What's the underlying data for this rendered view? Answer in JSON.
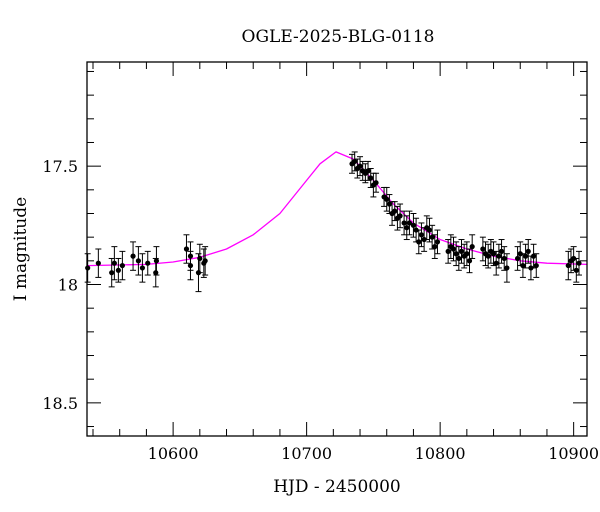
{
  "chart_data": {
    "type": "scatter",
    "title": "OGLE-2025-BLG-0118",
    "xlabel": "HJD - 2450000",
    "ylabel": "I magnitude",
    "xlim": [
      10535.5,
      10910
    ],
    "ylim": [
      18.64,
      17.06
    ],
    "y_inverted": true,
    "grid": false,
    "x_ticks": [
      10600,
      10700,
      10800,
      10900
    ],
    "x_tick_labels": [
      "10600",
      "10700",
      "10800",
      "10900"
    ],
    "y_ticks": [
      17.5,
      18,
      18.5
    ],
    "y_tick_labels": [
      "17.5",
      "18",
      "18.5"
    ],
    "colors": {
      "points": "#000000",
      "errorbars": "#000000",
      "model": "#ff00ff"
    },
    "points": [
      [
        10536,
        17.93,
        0.06
      ],
      [
        10544,
        17.91,
        0.06
      ],
      [
        10554,
        17.95,
        0.06
      ],
      [
        10556,
        17.91,
        0.07
      ],
      [
        10559,
        17.94,
        0.05
      ],
      [
        10562,
        17.92,
        0.06
      ],
      [
        10570,
        17.88,
        0.06
      ],
      [
        10574,
        17.9,
        0.06
      ],
      [
        10577,
        17.93,
        0.06
      ],
      [
        10581,
        17.91,
        0.05
      ],
      [
        10587,
        17.95,
        0.06
      ],
      [
        10587.5,
        17.9,
        0.06
      ],
      [
        10610,
        17.85,
        0.06
      ],
      [
        10613,
        17.88,
        0.06
      ],
      [
        10613,
        17.92,
        0.06
      ],
      [
        10619,
        17.95,
        0.08
      ],
      [
        10620,
        17.89,
        0.06
      ],
      [
        10623,
        17.91,
        0.06
      ],
      [
        10624,
        17.9,
        0.06
      ],
      [
        10734,
        17.49,
        0.04
      ],
      [
        10736,
        17.48,
        0.04
      ],
      [
        10738,
        17.51,
        0.04
      ],
      [
        10740,
        17.5,
        0.04
      ],
      [
        10742,
        17.52,
        0.04
      ],
      [
        10744,
        17.53,
        0.04
      ],
      [
        10746,
        17.52,
        0.04
      ],
      [
        10748,
        17.55,
        0.04
      ],
      [
        10750,
        17.58,
        0.05
      ],
      [
        10752,
        17.57,
        0.04
      ],
      [
        10758,
        17.63,
        0.04
      ],
      [
        10760,
        17.64,
        0.05
      ],
      [
        10762,
        17.66,
        0.04
      ],
      [
        10764,
        17.7,
        0.05
      ],
      [
        10766,
        17.69,
        0.04
      ],
      [
        10768,
        17.72,
        0.05
      ],
      [
        10770,
        17.71,
        0.05
      ],
      [
        10773,
        17.74,
        0.05
      ],
      [
        10775,
        17.76,
        0.05
      ],
      [
        10777,
        17.74,
        0.05
      ],
      [
        10780,
        17.75,
        0.05
      ],
      [
        10782,
        17.77,
        0.05
      ],
      [
        10784,
        17.82,
        0.05
      ],
      [
        10786,
        17.79,
        0.05
      ],
      [
        10788,
        17.81,
        0.05
      ],
      [
        10790,
        17.76,
        0.05
      ],
      [
        10792,
        17.77,
        0.05
      ],
      [
        10794,
        17.8,
        0.05
      ],
      [
        10796,
        17.84,
        0.05
      ],
      [
        10798,
        17.82,
        0.05
      ],
      [
        10806,
        17.86,
        0.05
      ],
      [
        10808,
        17.84,
        0.05
      ],
      [
        10810,
        17.85,
        0.05
      ],
      [
        10812,
        17.87,
        0.05
      ],
      [
        10814,
        17.89,
        0.05
      ],
      [
        10816,
        17.86,
        0.05
      ],
      [
        10818,
        17.88,
        0.05
      ],
      [
        10820,
        17.87,
        0.05
      ],
      [
        10822,
        17.9,
        0.05
      ],
      [
        10824,
        17.84,
        0.05
      ],
      [
        10832,
        17.85,
        0.05
      ],
      [
        10834,
        17.87,
        0.05
      ],
      [
        10836,
        17.88,
        0.05
      ],
      [
        10838,
        17.86,
        0.05
      ],
      [
        10840,
        17.87,
        0.05
      ],
      [
        10842,
        17.91,
        0.05
      ],
      [
        10844,
        17.88,
        0.05
      ],
      [
        10846,
        17.86,
        0.05
      ],
      [
        10848,
        17.89,
        0.05
      ],
      [
        10850,
        17.93,
        0.06
      ],
      [
        10858,
        17.89,
        0.05
      ],
      [
        10860,
        17.87,
        0.05
      ],
      [
        10862,
        17.92,
        0.05
      ],
      [
        10864,
        17.88,
        0.05
      ],
      [
        10866,
        17.86,
        0.05
      ],
      [
        10868,
        17.93,
        0.05
      ],
      [
        10870,
        17.88,
        0.05
      ],
      [
        10872,
        17.92,
        0.05
      ],
      [
        10896,
        17.92,
        0.06
      ],
      [
        10898,
        17.9,
        0.05
      ],
      [
        10900,
        17.89,
        0.05
      ],
      [
        10902,
        17.94,
        0.05
      ],
      [
        10904,
        17.91,
        0.05
      ]
    ],
    "model": [
      [
        10535.5,
        17.92
      ],
      [
        10580,
        17.915
      ],
      [
        10600,
        17.905
      ],
      [
        10620,
        17.885
      ],
      [
        10640,
        17.85
      ],
      [
        10660,
        17.79
      ],
      [
        10680,
        17.7
      ],
      [
        10700,
        17.56
      ],
      [
        10710,
        17.49
      ],
      [
        10722,
        17.44
      ],
      [
        10735,
        17.47
      ],
      [
        10750,
        17.56
      ],
      [
        10765,
        17.66
      ],
      [
        10780,
        17.74
      ],
      [
        10800,
        17.81
      ],
      [
        10820,
        17.85
      ],
      [
        10840,
        17.88
      ],
      [
        10860,
        17.9
      ],
      [
        10880,
        17.91
      ],
      [
        10910,
        17.915
      ]
    ]
  }
}
